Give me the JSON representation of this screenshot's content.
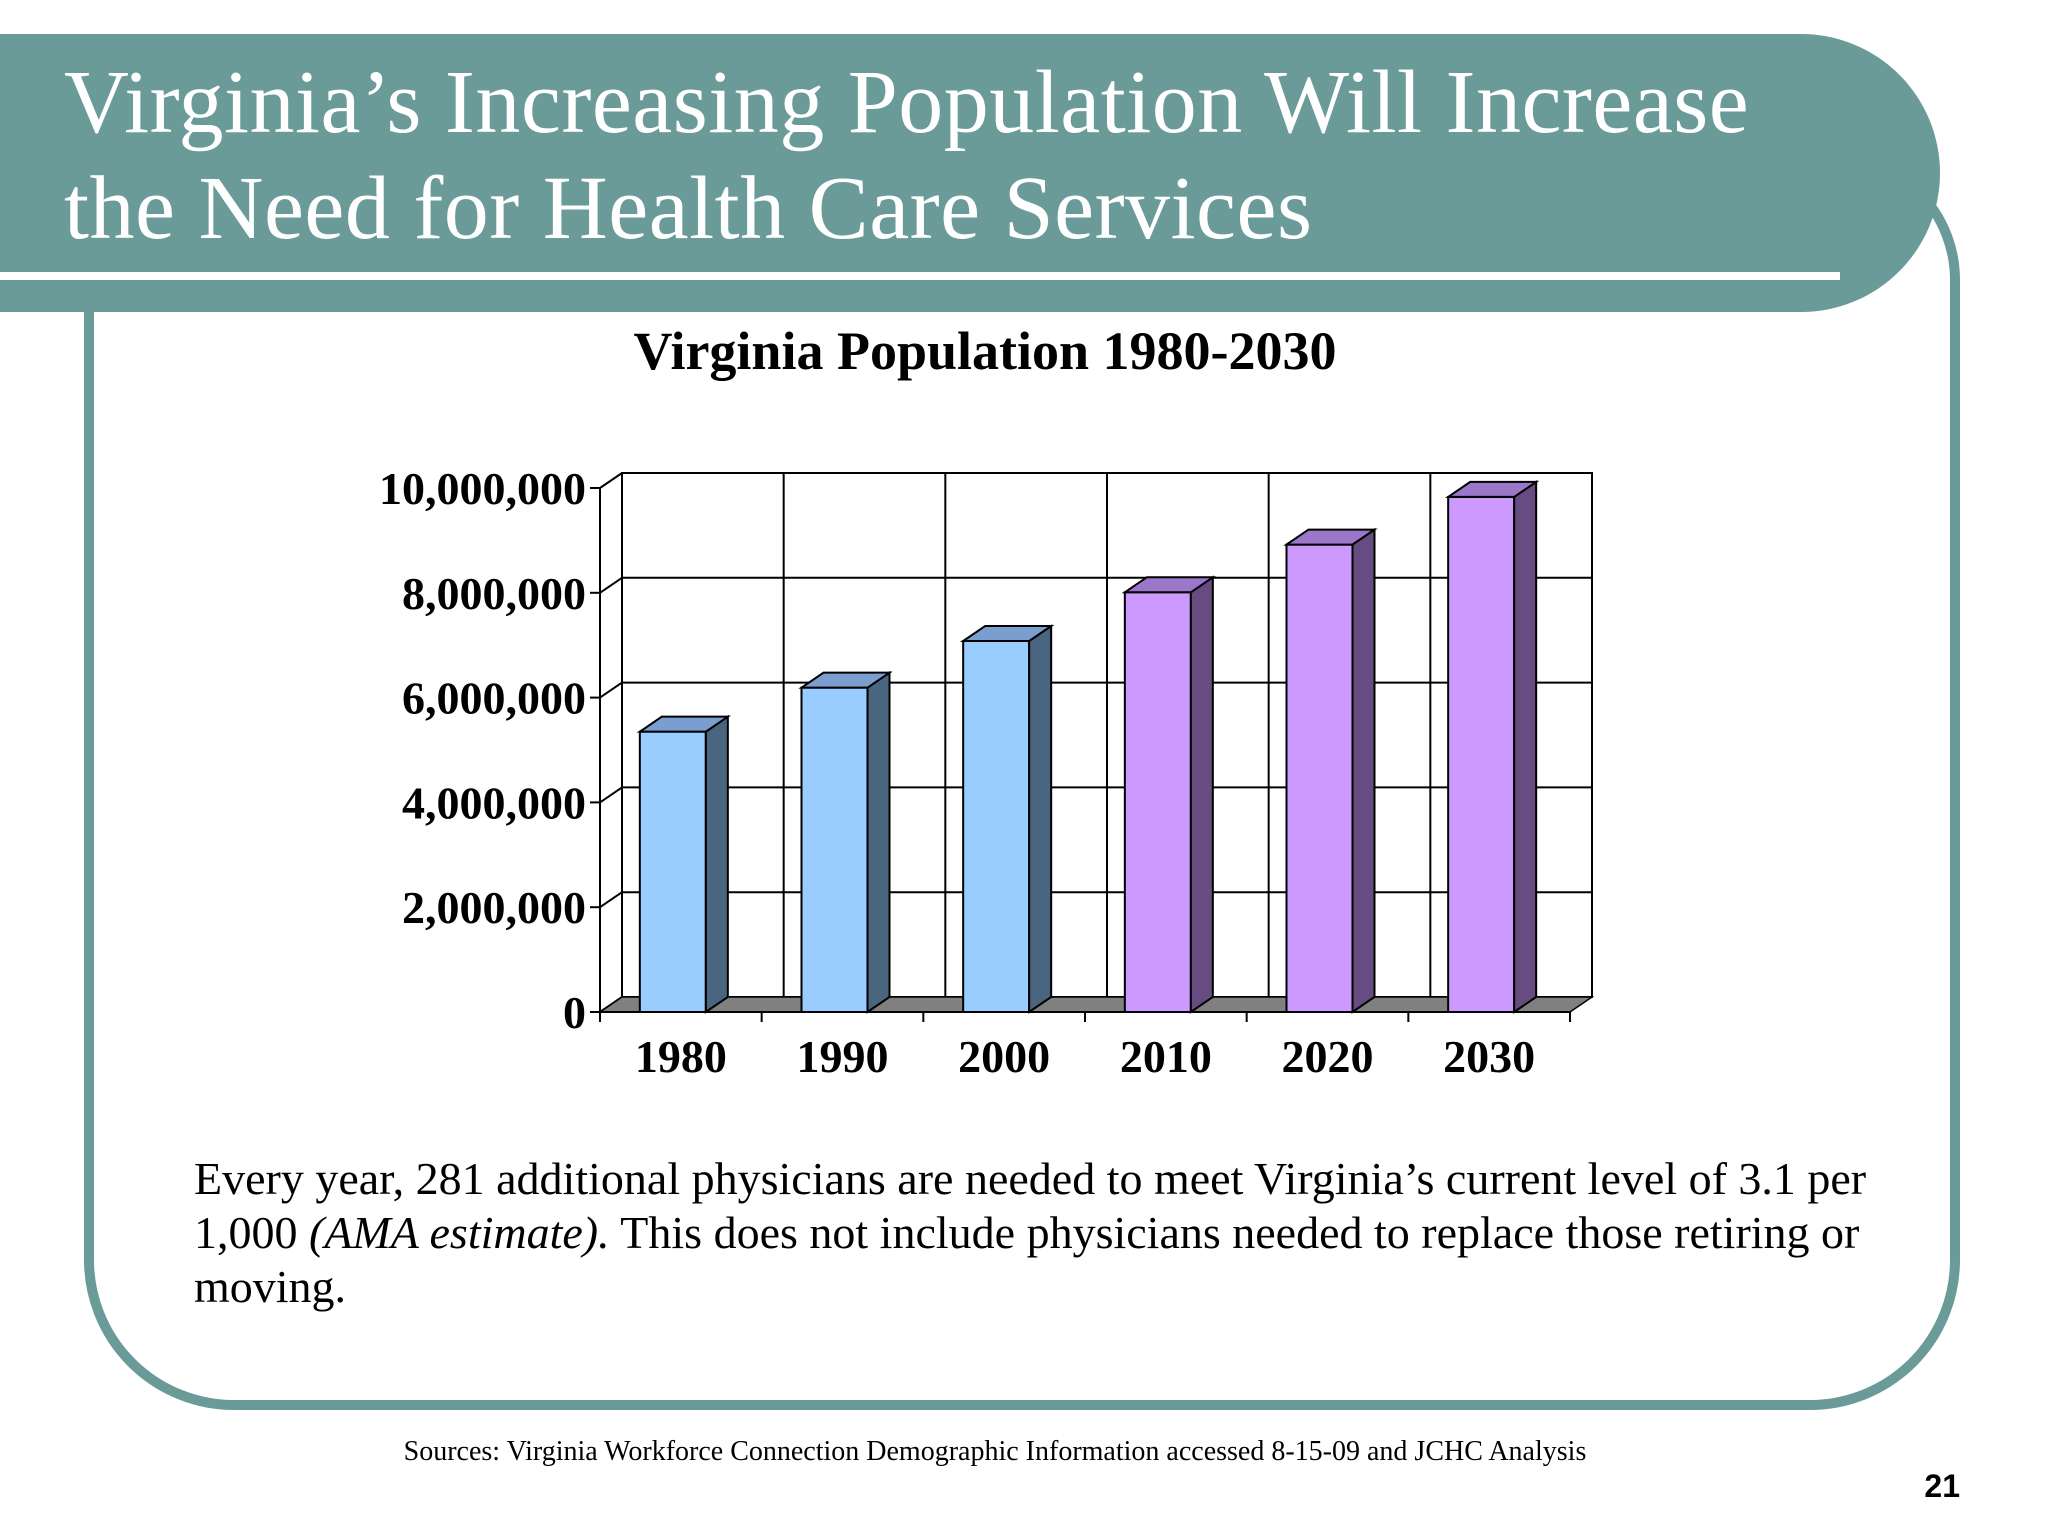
{
  "slide": {
    "title": "Virginia’s Increasing Population Will Increase the Need for Health Care Services",
    "body": {
      "part1": "Every year, 281 additional physicians are needed to meet Virginia’s current level of  3.1 per 1,000 ",
      "italic": "(AMA estimate).",
      "part2": "  This does not include physicians needed to replace those retiring or moving."
    },
    "sources": "Sources: Virginia Workforce Connection Demographic Information accessed 8-15-09 and JCHC Analysis",
    "page_number": "21"
  },
  "colors": {
    "header_band": "#6a9b99",
    "historical_bar": "#99ccff",
    "historical_bar_side": "#4a6580",
    "historical_bar_top": "#7a9ecf",
    "projected_bar": "#cc99ff",
    "projected_bar_side": "#664c80",
    "projected_bar_top": "#9a77c8",
    "floor": "#808080"
  },
  "chart_data": {
    "type": "bar",
    "title": "Virginia Population 1980-2030",
    "xlabel": "",
    "ylabel": "",
    "categories": [
      "1980",
      "1990",
      "2000",
      "2010",
      "2020",
      "2030"
    ],
    "series": [
      {
        "values": [
          5350000,
          6190000,
          7080000,
          8010000,
          8920000,
          9830000
        ]
      }
    ],
    "bar_groups": [
      "historical",
      "historical",
      "historical",
      "projected",
      "projected",
      "projected"
    ],
    "ylim": [
      0,
      10000000
    ],
    "yticks": [
      0,
      2000000,
      4000000,
      6000000,
      8000000,
      10000000
    ],
    "ytick_labels": [
      "0",
      "2,000,000",
      "4,000,000",
      "6,000,000",
      "8,000,000",
      "10,000,000"
    ],
    "grid": true,
    "legend": "none",
    "style": "3d-column"
  }
}
